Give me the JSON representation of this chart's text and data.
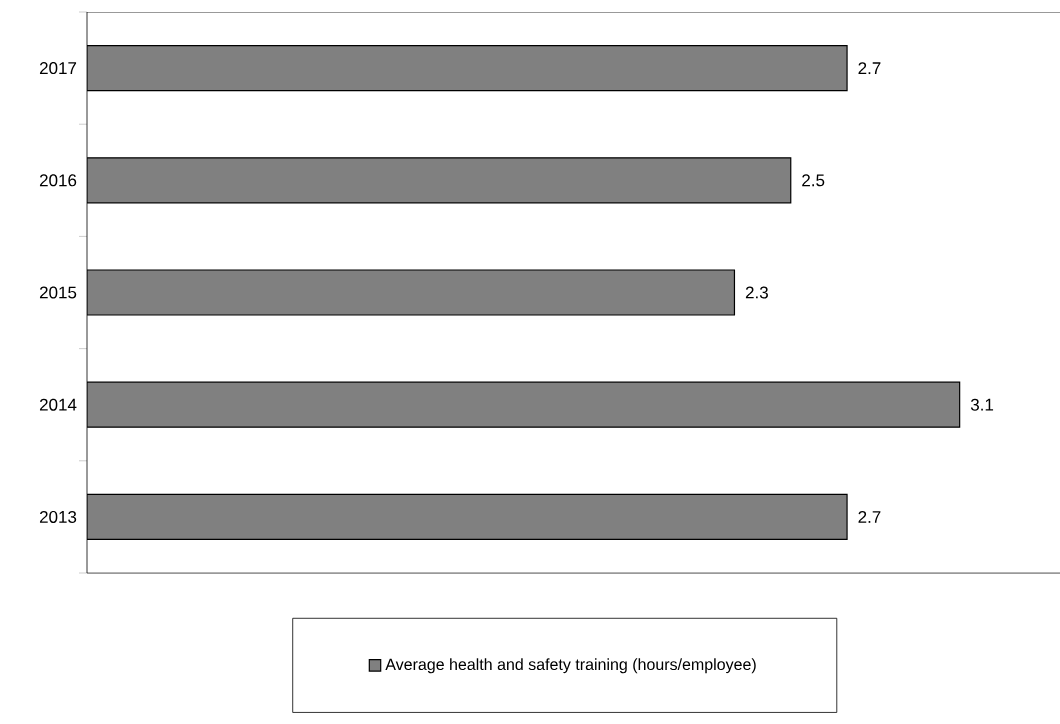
{
  "chart_data": {
    "type": "bar",
    "orientation": "horizontal",
    "categories": [
      "2017",
      "2016",
      "2015",
      "2014",
      "2013"
    ],
    "series": [
      {
        "name": "Average health and safety training (hours/employee)",
        "color": "#808080",
        "values": [
          2.7,
          2.5,
          2.3,
          3.1,
          2.7
        ]
      }
    ],
    "data_labels": true,
    "legend": "bottom",
    "grid": false
  }
}
